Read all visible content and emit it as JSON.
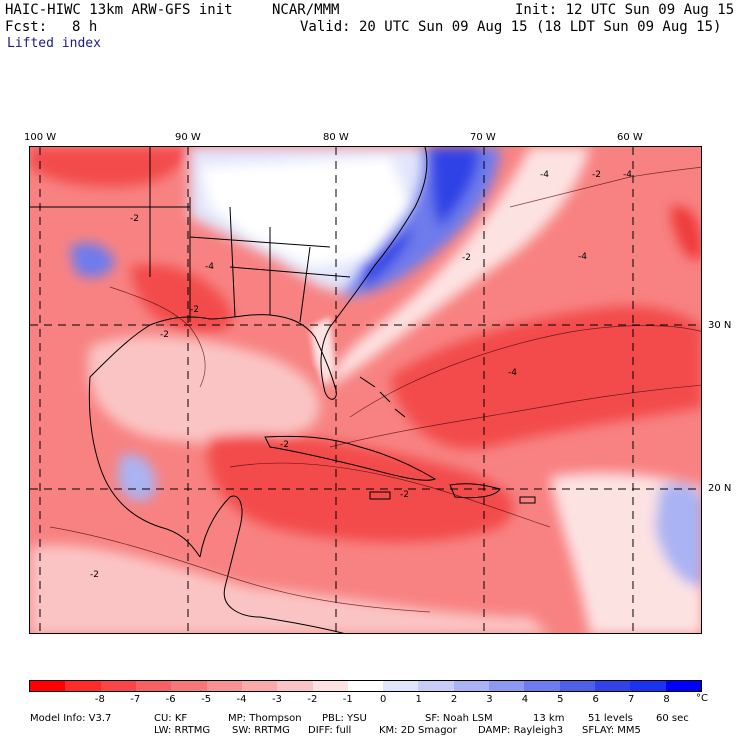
{
  "header": {
    "model": "HAIC-HIWC 13km ARW-GFS init",
    "org": "NCAR/MMM",
    "init": "Init: 12 UTC Sun 09 Aug 15",
    "fcst_label": "Fcst:",
    "fcst_value": "8 h",
    "valid": "Valid: 20 UTC Sun 09 Aug 15 (18 LDT Sun 09 Aug 15)",
    "field": "Lifted index"
  },
  "map": {
    "lon_labels": [
      "100 W",
      "90 W",
      "80 W",
      "70 W",
      "60 W"
    ],
    "lat_labels": [
      "30 N",
      "20 N"
    ],
    "contour_labels": [
      "-4",
      "-2",
      "-4",
      "-2",
      "-4",
      "-2",
      "-4",
      "-2",
      "-2",
      "-4",
      "-2",
      "-2",
      "-2"
    ],
    "colors": {
      "strong_negative": "#f34b4b",
      "moderate_negative": "#f88282",
      "weak_negative": "#fbc4c4",
      "neutral": "#ffffff",
      "weak_positive": "#d6dbf7",
      "positive": "#9aa5f0",
      "strong_positive": "#2f43e6"
    }
  },
  "colorbar": {
    "ticks": [
      "-8",
      "-7",
      "-6",
      "-5",
      "-4",
      "-3",
      "-2",
      "-1",
      "0",
      "1",
      "2",
      "3",
      "4",
      "5",
      "6",
      "7",
      "8"
    ],
    "unit": "°C",
    "colors": [
      "#ff0000",
      "#ff2b2b",
      "#f94545",
      "#f56060",
      "#f57878",
      "#f79292",
      "#f9abab",
      "#fbc4c4",
      "#fde2e2",
      "#ffffff",
      "#e2e6fb",
      "#c7cdf7",
      "#aab3f3",
      "#8d98f0",
      "#6e7bec",
      "#4f60e8",
      "#2f43e6",
      "#1a33f0",
      "#0000ff"
    ]
  },
  "model_info": {
    "line1": {
      "label": "Model Info: V3.7",
      "cu": "CU: KF",
      "mp": "MP: Thompson",
      "pbl": "PBL: YSU",
      "sf": "SF: Noah LSM",
      "res": "13 km",
      "levels": "51 levels",
      "dt": "60 sec"
    },
    "line2": {
      "lw": "LW: RRTMG",
      "sw": "SW: RRTMG",
      "diff": "DIFF: full",
      "km": "KM: 2D Smagor",
      "damp": "DAMP: Rayleigh3",
      "sflay": "SFLAY: MM5"
    }
  }
}
